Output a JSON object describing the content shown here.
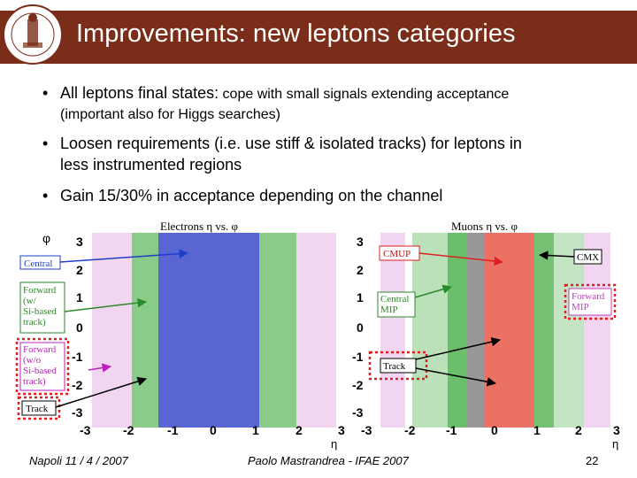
{
  "header": {
    "title": "Improvements: new leptons categories",
    "logo_icon": "university-seal-icon"
  },
  "bullets": [
    {
      "main": "All leptons final states:",
      "rest": " cope with small signals extending acceptance",
      "line2": "(important also for Higgs searches)"
    },
    {
      "line1": "Loosen requirements (i.e. use stiff & isolated tracks) for leptons in",
      "line2": "less instrumented regions"
    },
    {
      "line1": "Gain 15/30% in acceptance depending on the channel"
    }
  ],
  "plots": {
    "left": {
      "title": "Electrons η vs. φ",
      "y_axis_symbol": "φ",
      "y_ticks": [
        "3",
        "2",
        "1",
        "0",
        "-1",
        "-2",
        "-3"
      ],
      "x_ticks": [
        "-3",
        "-2",
        "-1",
        "0",
        "1",
        "2",
        "3"
      ],
      "xlabel": "η",
      "labels": {
        "central": "Central",
        "forward_si": [
          "Forward",
          "(w/",
          "Si-based",
          "track)"
        ],
        "forward_nosi": [
          "Forward",
          "(w/o",
          "Si-based",
          "track)"
        ],
        "track": "Track"
      }
    },
    "right": {
      "title": "Muons η vs. φ",
      "y_ticks": [
        "3",
        "2",
        "1",
        "0",
        "-1",
        "-2",
        "-3"
      ],
      "x_ticks": [
        "-3",
        "-2",
        "-1",
        "0",
        "1",
        "2",
        "3"
      ],
      "xlabel": "η",
      "labels": {
        "cmup": "CMUP",
        "cmx": "CMX",
        "central_mip": [
          "Central",
          "MIP"
        ],
        "forward_mip": [
          "Forward",
          "MIP"
        ],
        "track": "Track"
      }
    }
  },
  "footer": {
    "date": "Napoli 11 / 4 / 2007",
    "author": "Paolo Mastrandrea - IFAE 2007",
    "page": "22"
  },
  "colors": {
    "title_bar": "#7a2d18",
    "blue": "#2f3fc8",
    "green": "#3aa83a",
    "magenta": "#c040c0",
    "red": "#e8584a",
    "highlight": "#e02020"
  }
}
